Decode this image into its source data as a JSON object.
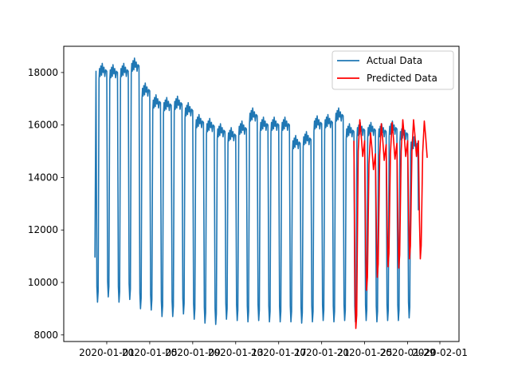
{
  "chart_data": {
    "type": "line",
    "title": "",
    "xlabel": "",
    "ylabel": "",
    "x_unit": "date",
    "xlim": [
      "2019-12-30",
      "2020-02-01"
    ],
    "ylim": [
      7750,
      19000
    ],
    "x_ticks": [
      "2020-01-01",
      "2020-01-05",
      "2020-01-09",
      "2020-01-13",
      "2020-01-17",
      "2020-01-21",
      "2020-01-25",
      "2020-01-29",
      "2020-02-01"
    ],
    "y_ticks": [
      8000,
      10000,
      12000,
      14000,
      16000,
      18000
    ],
    "grid": false,
    "legend_position": "upper right",
    "series": [
      {
        "name": "Actual Data",
        "color": "#1f77b4",
        "daily_min": [
          9250,
          9450,
          9250,
          9350,
          9000,
          8950,
          8700,
          8700,
          8800,
          8600,
          8450,
          8400,
          8600,
          8550,
          8500,
          8550,
          8500,
          8500,
          8500,
          8450,
          8500,
          8550,
          8500,
          8550,
          8500,
          8550,
          8500,
          8550,
          8550,
          8650
        ],
        "daily_max": [
          18350,
          18300,
          18350,
          18550,
          17600,
          17150,
          17050,
          17100,
          16850,
          16400,
          16250,
          16050,
          15900,
          16150,
          16650,
          16300,
          16300,
          16300,
          15600,
          15750,
          16350,
          16400,
          16650,
          16050,
          16100,
          16100,
          16050,
          16150,
          15950,
          15550
        ],
        "end_value": 12750,
        "start_value": 10950,
        "start_date": "2019-12-31",
        "end_date": "2020-01-30"
      },
      {
        "name": "Predicted Data",
        "color": "#ff0000",
        "start_date": "2020-01-24",
        "end_date": "2020-01-30",
        "daily_min": [
          8250,
          9700,
          10200,
          10600,
          10550,
          10900,
          10900
        ],
        "daily_max": [
          16200,
          15700,
          16050,
          16100,
          16200,
          16200,
          16150
        ]
      }
    ]
  }
}
